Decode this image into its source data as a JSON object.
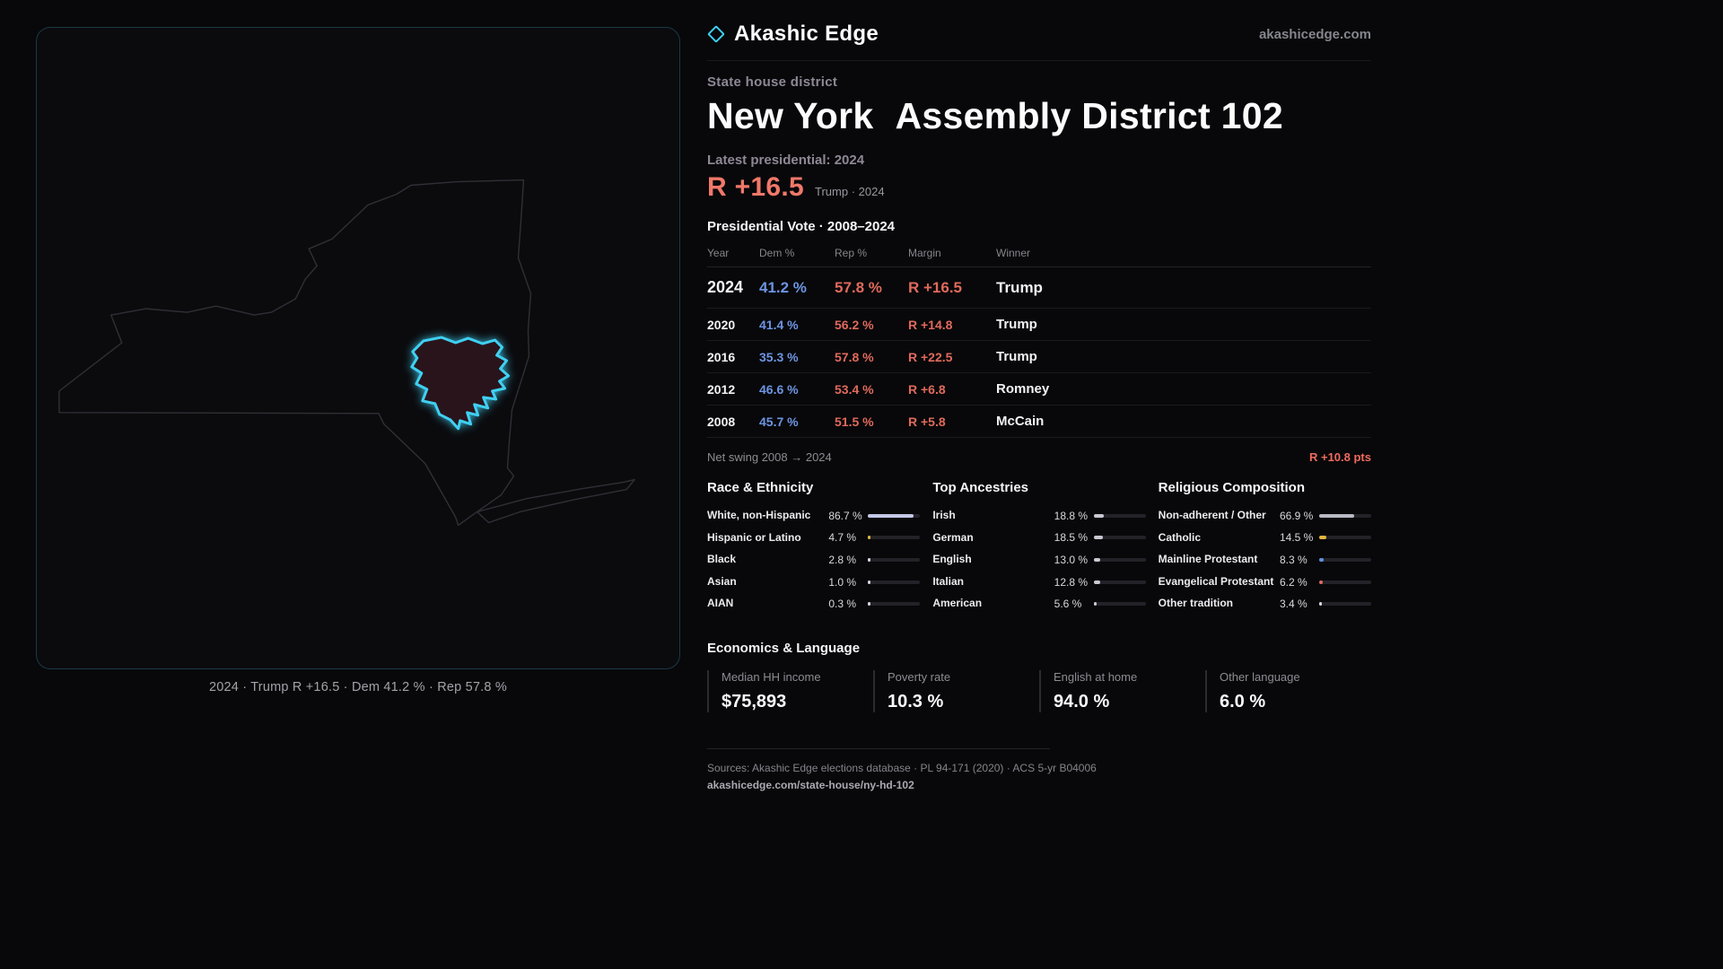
{
  "brand": {
    "name": "Akashic Edge",
    "site": "akashicedge.com",
    "icon": "diamond-icon"
  },
  "colors": {
    "accent_cyan": "#3fd0f2",
    "rep_red": "#e06a5c",
    "dem_blue": "#6d95e2",
    "highlight_yellow": "#e3b53e"
  },
  "map": {
    "caption": "2024 · Trump R +16.5 · Dem 41.2 % · Rep 57.8 %"
  },
  "header": {
    "kicker": "State house district",
    "title_state": "New York",
    "title_rest": "Assembly District 102",
    "latest_label": "Latest presidential: 2024",
    "headline_margin": "R +16.5",
    "headline_note": "Trump · 2024"
  },
  "vote_table": {
    "title": "Presidential Vote · 2008–2024",
    "columns": [
      "Year",
      "Dem %",
      "Rep %",
      "Margin",
      "Winner"
    ],
    "rows": [
      {
        "year": "2024",
        "dem": "41.2 %",
        "rep": "57.8 %",
        "margin": "R +16.5",
        "winner": "Trump"
      },
      {
        "year": "2020",
        "dem": "41.4 %",
        "rep": "56.2 %",
        "margin": "R +14.8",
        "winner": "Trump"
      },
      {
        "year": "2016",
        "dem": "35.3 %",
        "rep": "57.8 %",
        "margin": "R +22.5",
        "winner": "Trump"
      },
      {
        "year": "2012",
        "dem": "46.6 %",
        "rep": "53.4 %",
        "margin": "R +6.8",
        "winner": "Romney"
      },
      {
        "year": "2008",
        "dem": "45.7 %",
        "rep": "51.5 %",
        "margin": "R +5.8",
        "winner": "McCain"
      }
    ],
    "net_swing_label": "Net swing 2008 → 2024",
    "net_swing_value": "R +10.8 pts"
  },
  "demographics": {
    "race": {
      "title": "Race & Ethnicity",
      "items": [
        {
          "label": "White, non-Hispanic",
          "value": "86.7 %",
          "pct": 86.7,
          "color": "#c3c8e6"
        },
        {
          "label": "Hispanic or Latino",
          "value": "4.7 %",
          "pct": 4.7,
          "color": "#e3b53e"
        },
        {
          "label": "Black",
          "value": "2.8 %",
          "pct": 2.8,
          "color": "#d7d7de"
        },
        {
          "label": "Asian",
          "value": "1.0 %",
          "pct": 1.0,
          "color": "#d7d7de"
        },
        {
          "label": "AIAN",
          "value": "0.3 %",
          "pct": 0.3,
          "color": "#d7d7de"
        }
      ]
    },
    "ancestries": {
      "title": "Top Ancestries",
      "items": [
        {
          "label": "Irish",
          "value": "18.8 %",
          "pct": 18.8,
          "color": "#c9c9d2"
        },
        {
          "label": "German",
          "value": "18.5 %",
          "pct": 18.5,
          "color": "#c9c9d2"
        },
        {
          "label": "English",
          "value": "13.0 %",
          "pct": 13.0,
          "color": "#c9c9d2"
        },
        {
          "label": "Italian",
          "value": "12.8 %",
          "pct": 12.8,
          "color": "#c9c9d2"
        },
        {
          "label": "American",
          "value": "5.6 %",
          "pct": 5.6,
          "color": "#c9c9d2"
        }
      ]
    },
    "religion": {
      "title": "Religious Composition",
      "items": [
        {
          "label": "Non-adherent / Other",
          "value": "66.9 %",
          "pct": 66.9,
          "color": "#b9b9c4"
        },
        {
          "label": "Catholic",
          "value": "14.5 %",
          "pct": 14.5,
          "color": "#e3b53e"
        },
        {
          "label": "Mainline Protestant",
          "value": "8.3 %",
          "pct": 8.3,
          "color": "#5f8fe0"
        },
        {
          "label": "Evangelical Protestant",
          "value": "6.2 %",
          "pct": 6.2,
          "color": "#e0695e"
        },
        {
          "label": "Other tradition",
          "value": "3.4 %",
          "pct": 3.4,
          "color": "#d7d7de"
        }
      ]
    }
  },
  "economics": {
    "title": "Economics & Language",
    "stats": [
      {
        "label": "Median HH income",
        "value": "$75,893"
      },
      {
        "label": "Poverty rate",
        "value": "10.3 %"
      },
      {
        "label": "English at home",
        "value": "94.0 %"
      },
      {
        "label": "Other language",
        "value": "6.0 %"
      }
    ]
  },
  "footer": {
    "sources": "Sources: Akashic Edge elections database · PL 94-171 (2020) · ACS 5-yr B04006",
    "permalink": "akashicedge.com/state-house/ny-hd-102"
  }
}
